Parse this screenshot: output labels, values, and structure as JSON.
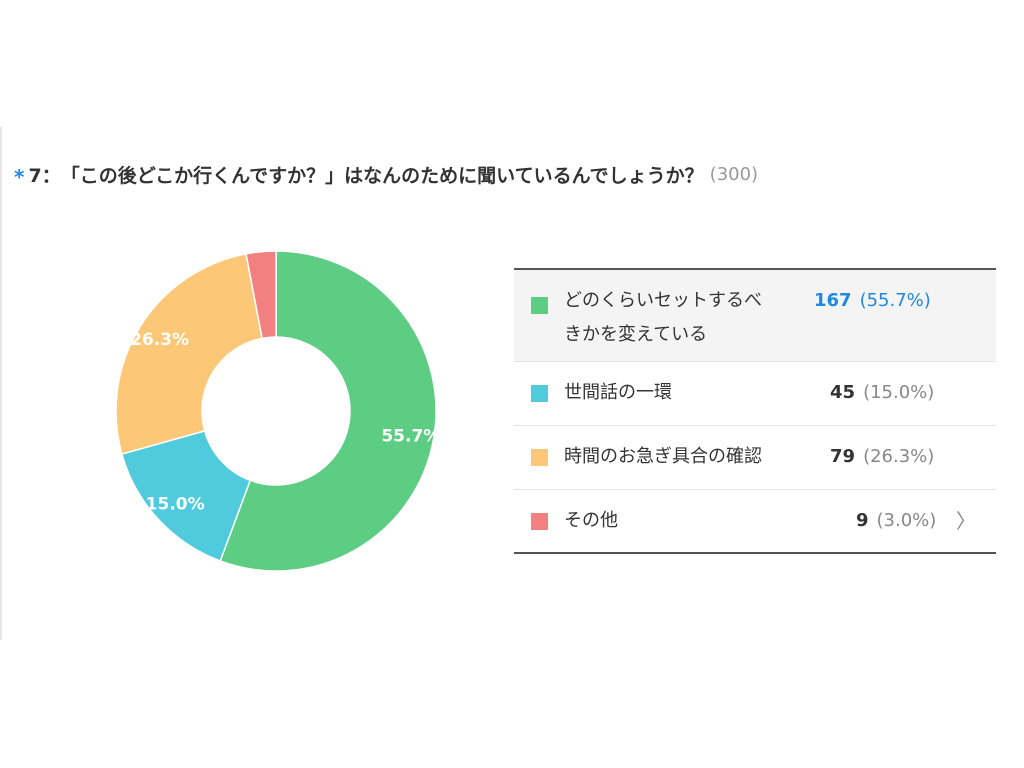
{
  "question": {
    "mark": "*",
    "number": "7：",
    "text": "「この後どこか行くんですか？」はなんのために聞いているんでしょうか？",
    "count": "(300)"
  },
  "chart_data": {
    "type": "pie",
    "style": "donut",
    "total": 300,
    "slices": [
      {
        "label": "どのくらいセットするべきかを変えている",
        "label_line1": "どのくらいセットするべ",
        "label_line2": "きかを変えている",
        "value": 167,
        "percent": "55.7%",
        "pct_display": "(55.7%)",
        "color": "#5ccd83"
      },
      {
        "label": "世間話の一環",
        "value": 45,
        "percent": "15.0%",
        "pct_display": "(15.0%)",
        "color": "#4fcbdd"
      },
      {
        "label": "時間のお急ぎ具合の確認",
        "value": 79,
        "percent": "26.3%",
        "pct_display": "(26.3%)",
        "color": "#fcc877"
      },
      {
        "label": "その他",
        "value": 9,
        "percent": "3.0%",
        "pct_display": "(3.0%)",
        "color": "#f28080"
      }
    ],
    "legend_placement": "right"
  },
  "legend": {
    "chevron": "〉"
  }
}
